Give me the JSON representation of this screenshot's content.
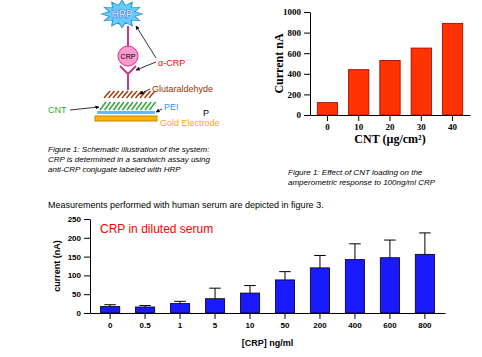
{
  "schematic": {
    "labels": {
      "hrp": "HRP",
      "crp": "CRP",
      "antibody": "α-CRP",
      "linker": "Glutaraldehyde",
      "cnt": "CNT",
      "pei": "PEI",
      "p": "P",
      "electrode": "Gold Electrode"
    },
    "caption": [
      "Figure 1: Schematic illustration of the system:",
      "CRP is determined in a sandwich assay using",
      "anti-CRP conjugate labeled with HRP"
    ]
  },
  "cnt_caption": [
    "Figure 1: Effect of CNT loading on the",
    "amperometric response to 100ng/ml CRP"
  ],
  "text": "Measurements performed with human serum are depicted in figure 3.",
  "chart_data": [
    {
      "type": "bar",
      "x_label": "CNT (µg/cm²)",
      "y_label": "Current nA",
      "categories": [
        "0",
        "10",
        "20",
        "30",
        "40"
      ],
      "values": [
        120,
        440,
        530,
        650,
        890
      ],
      "color": "#ff3300",
      "ylim": [
        0,
        1000
      ],
      "yticks": [
        0,
        200,
        400,
        600,
        800,
        1000
      ]
    },
    {
      "type": "bar",
      "title": "CRP in diluted serum",
      "x_label": "[CRP] ng/ml",
      "y_label": "current (nA)",
      "categories": [
        "0",
        "0.5",
        "1",
        "5",
        "10",
        "50",
        "200",
        "400",
        "600",
        "800"
      ],
      "values": [
        17,
        16,
        25,
        38,
        53,
        88,
        120,
        142,
        147,
        156
      ],
      "errors": [
        5,
        4,
        6,
        28,
        20,
        22,
        33,
        42,
        47,
        57
      ],
      "color": "#1a1aff",
      "ylim": [
        0,
        250
      ],
      "yticks": [
        0,
        50,
        100,
        150,
        200,
        250
      ]
    }
  ]
}
